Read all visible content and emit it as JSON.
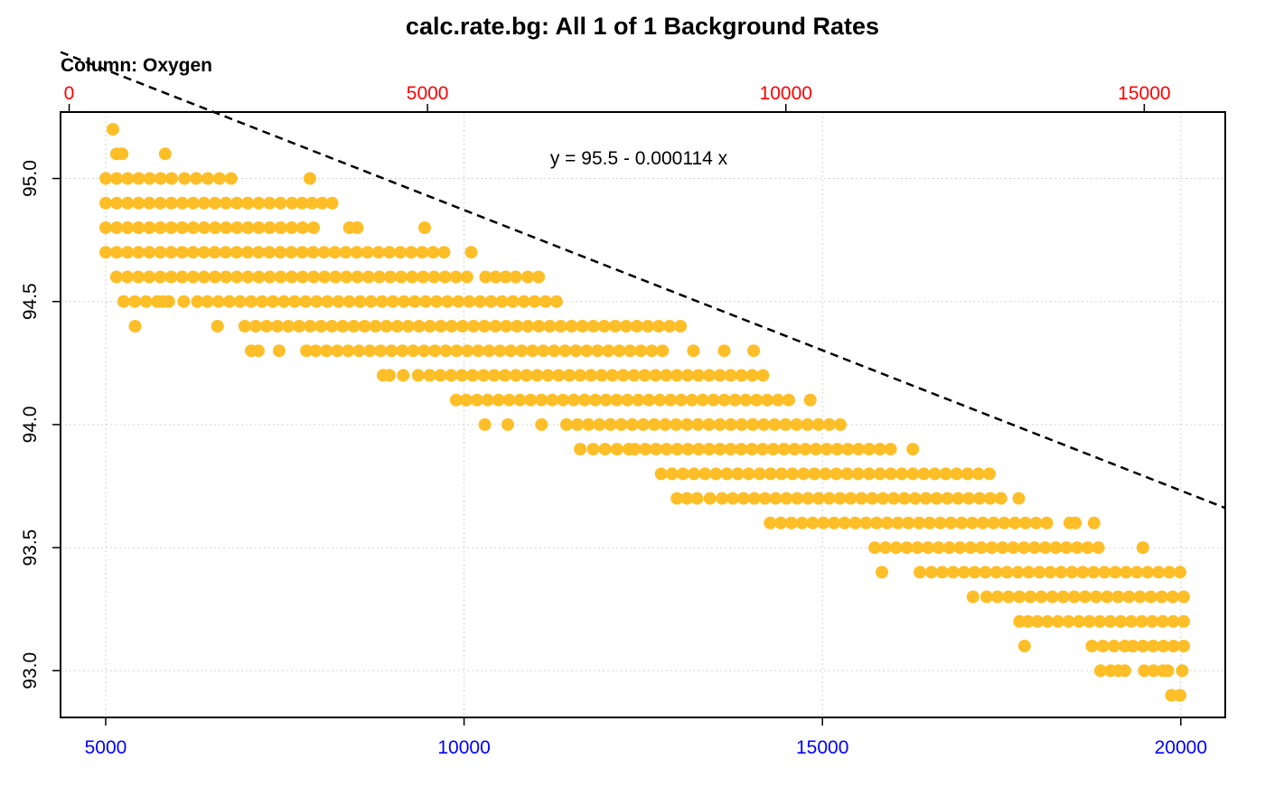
{
  "chart_data": {
    "type": "scatter",
    "title": "calc.rate.bg: All 1 of 1 Background Rates",
    "subtitle": "Column: Oxygen",
    "annotation": "y = 95.5 - 0.000114 x",
    "xlim": [
      4370,
      20620
    ],
    "ylim": [
      92.81,
      95.27
    ],
    "top_xlim": [
      -120,
      16130
    ],
    "bottom_ticks": [
      "5000",
      "10000",
      "15000",
      "20000"
    ],
    "top_ticks": [
      "0",
      "5000",
      "10000",
      "15000"
    ],
    "y_ticks": [
      "93.0",
      "93.5",
      "94.0",
      "94.5",
      "95.0"
    ],
    "grid": true,
    "regression": {
      "intercept": 95.5,
      "slope": -0.000114
    },
    "colors": {
      "points": "#FDBE27",
      "bottom_axis": "#0000FF",
      "top_axis": "#FF0000",
      "grid": "#D3D3D3",
      "regression_line": "#000000"
    },
    "point_bands": [
      {
        "y": 95.2,
        "segments": [
          [
            5100,
            5100
          ]
        ]
      },
      {
        "y": 95.1,
        "segments": [
          [
            5150,
            5230
          ],
          [
            5830,
            5850
          ]
        ]
      },
      {
        "y": 95.0,
        "segments": [
          [
            5000,
            5920
          ],
          [
            6100,
            6750
          ],
          [
            7850,
            7850
          ]
        ]
      },
      {
        "y": 94.9,
        "segments": [
          [
            5000,
            7440
          ],
          [
            7600,
            8160
          ]
        ]
      },
      {
        "y": 94.8,
        "segments": [
          [
            5000,
            7900
          ],
          [
            8400,
            8510
          ],
          [
            9450,
            9470
          ]
        ]
      },
      {
        "y": 94.7,
        "segments": [
          [
            5000,
            9720
          ],
          [
            10100,
            10110
          ]
        ]
      },
      {
        "y": 94.6,
        "segments": [
          [
            5150,
            10040
          ],
          [
            10300,
            10720
          ],
          [
            10890,
            11040
          ]
        ]
      },
      {
        "y": 94.5,
        "segments": [
          [
            5250,
            5720
          ],
          [
            5800,
            5880
          ],
          [
            6090,
            6280
          ],
          [
            6420,
            11290
          ]
        ]
      },
      {
        "y": 94.4,
        "segments": [
          [
            5410,
            5420
          ],
          [
            6560,
            6590
          ],
          [
            6940,
            13020
          ]
        ]
      },
      {
        "y": 94.3,
        "segments": [
          [
            7030,
            7130
          ],
          [
            7420,
            7420
          ],
          [
            7800,
            7930
          ],
          [
            8080,
            12770
          ],
          [
            13200,
            13210
          ],
          [
            13630,
            13650
          ],
          [
            14040,
            14060
          ]
        ]
      },
      {
        "y": 94.2,
        "segments": [
          [
            8870,
            8960
          ],
          [
            9150,
            9360
          ],
          [
            9520,
            14170
          ]
        ]
      },
      {
        "y": 94.1,
        "segments": [
          [
            9890,
            9890
          ],
          [
            10030,
            14530
          ],
          [
            14830,
            14890
          ]
        ]
      },
      {
        "y": 94.0,
        "segments": [
          [
            10290,
            10290
          ],
          [
            10610,
            10620
          ],
          [
            11080,
            11130
          ],
          [
            11430,
            15250
          ]
        ]
      },
      {
        "y": 93.9,
        "segments": [
          [
            11620,
            11650
          ],
          [
            11800,
            12300
          ],
          [
            12380,
            15950
          ],
          [
            16260,
            16310
          ]
        ]
      },
      {
        "y": 93.8,
        "segments": [
          [
            12750,
            17330
          ]
        ]
      },
      {
        "y": 93.7,
        "segments": [
          [
            12970,
            13110
          ],
          [
            13250,
            13430
          ],
          [
            13600,
            17490
          ],
          [
            17740,
            17760
          ]
        ]
      },
      {
        "y": 93.6,
        "segments": [
          [
            14270,
            18130
          ],
          [
            18450,
            18530
          ],
          [
            18790,
            18800
          ]
        ]
      },
      {
        "y": 93.5,
        "segments": [
          [
            15730,
            18850
          ],
          [
            19470,
            19490
          ]
        ]
      },
      {
        "y": 93.4,
        "segments": [
          [
            15830,
            15840
          ],
          [
            16360,
            16380
          ],
          [
            16520,
            19990
          ]
        ]
      },
      {
        "y": 93.3,
        "segments": [
          [
            17100,
            17130
          ],
          [
            17290,
            20040
          ]
        ]
      },
      {
        "y": 93.2,
        "segments": [
          [
            17750,
            17790
          ],
          [
            17870,
            18000
          ],
          [
            18140,
            20040
          ]
        ]
      },
      {
        "y": 93.1,
        "segments": [
          [
            17820,
            17820
          ],
          [
            18760,
            19220
          ],
          [
            19330,
            20040
          ]
        ]
      },
      {
        "y": 93.0,
        "segments": [
          [
            18880,
            19020
          ],
          [
            19130,
            19220
          ],
          [
            19490,
            19750
          ],
          [
            19820,
            20020
          ]
        ]
      },
      {
        "y": 92.9,
        "segments": [
          [
            19870,
            19990
          ]
        ]
      }
    ]
  }
}
